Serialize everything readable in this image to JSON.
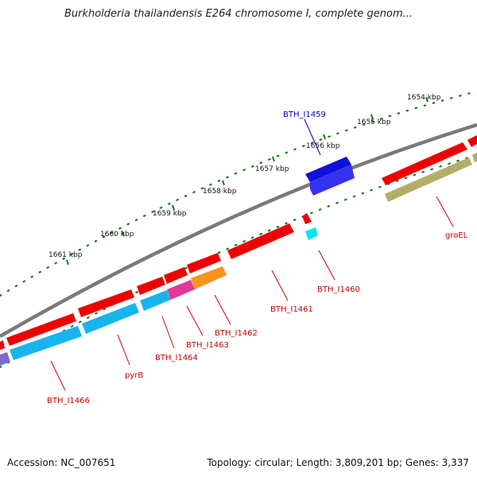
{
  "title": "Burkholderia thailandensis E264 chromosome I, complete genom...",
  "footer": {
    "accession": "Accession: NC_007651",
    "summary": "Topology: circular; Length: 3,809,201 bp; Genes: 3,337"
  },
  "colors": {
    "backbone": "#7a7a7a",
    "ticks": "#1a7a1a",
    "gene_red": "#ee0000",
    "gene_blue": "#1010dd",
    "gene_cyan": "#18b4ee",
    "gene_magenta": "#e0389a",
    "gene_orange": "#f7931e",
    "gene_olive": "#b3ad6a",
    "gene_purple": "#7a6ad0",
    "label_red": "#cc0000",
    "label_blue": "#0000cc"
  },
  "scale": {
    "unit": "kbp",
    "ticks": [
      "1654 kbp",
      "1655 kbp",
      "1656 kbp",
      "1657 kbp",
      "1658 kbp",
      "1659 kbp",
      "1660 kbp",
      "1661 kbp"
    ]
  },
  "gene_labels": [
    {
      "id": "BTH_I1459",
      "color": "blue"
    },
    {
      "id": "groEL",
      "color": "red"
    },
    {
      "id": "BTH_I1460",
      "color": "red"
    },
    {
      "id": "BTH_I1461",
      "color": "red"
    },
    {
      "id": "BTH_I1462",
      "color": "red"
    },
    {
      "id": "BTH_I1463",
      "color": "red"
    },
    {
      "id": "BTH_I1464",
      "color": "red"
    },
    {
      "id": "pyrB",
      "color": "red"
    },
    {
      "id": "BTH_I1466",
      "color": "red"
    }
  ]
}
